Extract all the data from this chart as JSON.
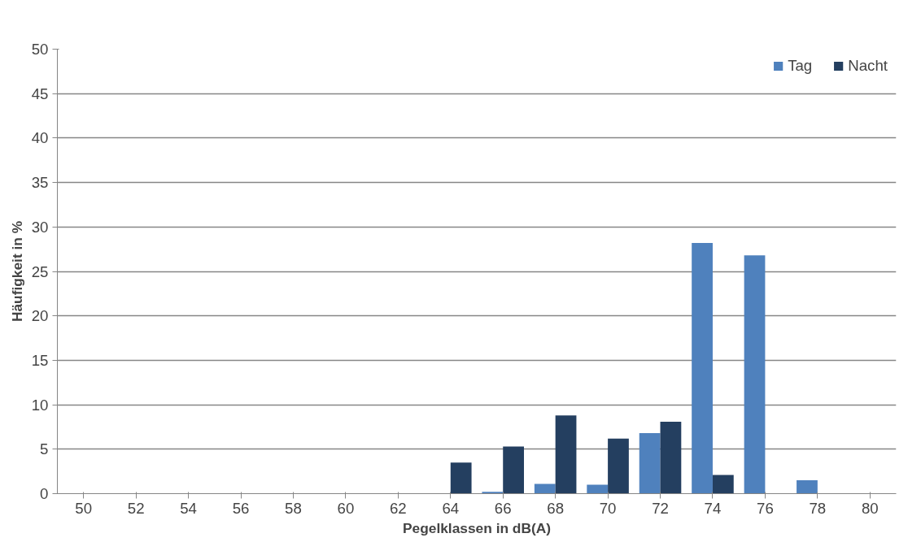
{
  "chart_data": {
    "type": "bar",
    "xlabel": "Pegelklassen in dB(A)",
    "ylabel": "Häufigkeit in %",
    "categories": [
      "50",
      "52",
      "54",
      "56",
      "58",
      "60",
      "62",
      "64",
      "66",
      "68",
      "70",
      "72",
      "74",
      "76",
      "78",
      "80"
    ],
    "series": [
      {
        "name": "Tag",
        "color": "#4f81bd",
        "values": [
          0,
          0,
          0,
          0,
          0,
          0,
          0,
          0,
          0.2,
          1.1,
          1.0,
          6.8,
          28.2,
          26.8,
          1.5,
          0
        ]
      },
      {
        "name": "Nacht",
        "color": "#243f60",
        "values": [
          0,
          0,
          0,
          0,
          0,
          0,
          0,
          3.5,
          5.3,
          8.8,
          6.2,
          8.1,
          2.1,
          0,
          0,
          0
        ]
      }
    ],
    "ylim": [
      0,
      50
    ],
    "yticks": [
      0,
      5,
      10,
      15,
      20,
      25,
      30,
      35,
      40,
      45,
      50
    ],
    "grid": "y",
    "legend": "top right"
  }
}
